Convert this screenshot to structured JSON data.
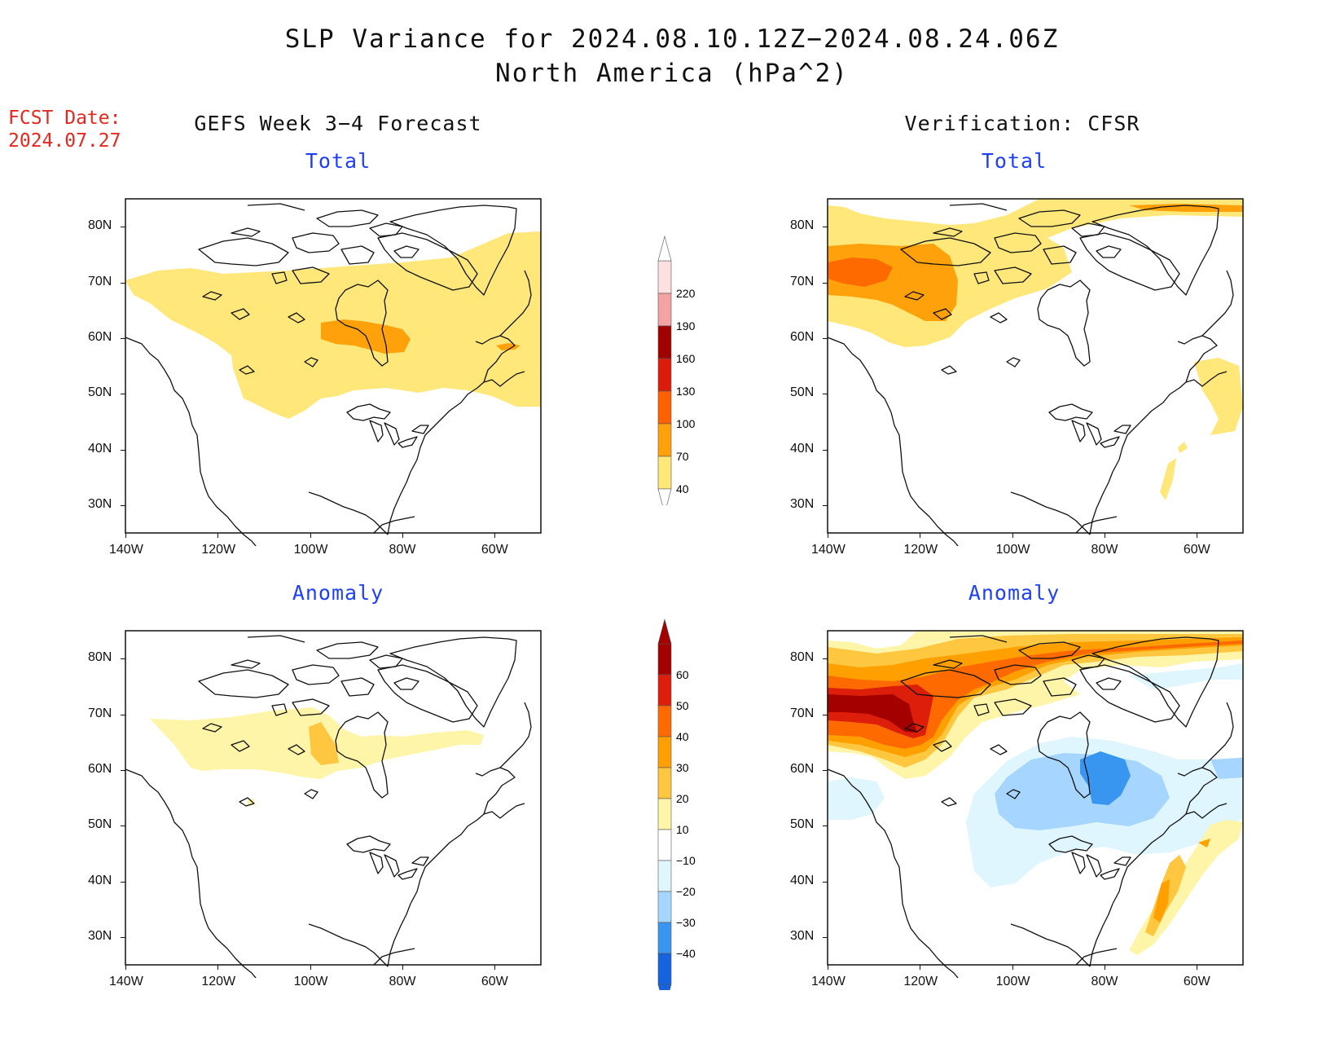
{
  "header": {
    "title": "SLP Variance for 2024.08.10.12Z−2024.08.24.06Z",
    "subtitle": "North America (hPa^2)",
    "fcst_label": "FCST Date:",
    "fcst_date": "2024.07.27"
  },
  "columns": {
    "left": "GEFS Week 3−4 Forecast",
    "right": "Verification: CFSR"
  },
  "panel_titles": {
    "forecast_total": "Total",
    "verif_total": "Total",
    "forecast_anomaly": "Anomaly",
    "verif_anomaly": "Anomaly"
  },
  "axes": {
    "lat_labels": [
      "80N",
      "70N",
      "60N",
      "50N",
      "40N",
      "30N"
    ],
    "lon_labels": [
      "140W",
      "120W",
      "100W",
      "80W",
      "60W"
    ],
    "lat_range": [
      25,
      85
    ],
    "lon_range": [
      -140,
      -50
    ]
  },
  "colorbars": {
    "total": {
      "labels": [
        "220",
        "190",
        "160",
        "130",
        "100",
        "70",
        "40"
      ],
      "colors": [
        "#fde0e0",
        "#f4a2a4",
        "#a00000",
        "#dc1c0a",
        "#ff6000",
        "#ffa10a",
        "#ffe77a"
      ]
    },
    "anomaly": {
      "labels": [
        "60",
        "50",
        "40",
        "30",
        "20",
        "10",
        "−10",
        "−20",
        "−30",
        "−40"
      ],
      "colors": [
        "#a50000",
        "#dc1e0a",
        "#ff6a00",
        "#ffa000",
        "#ffc640",
        "#fff5a8",
        "#ffffff",
        "#dff6ff",
        "#a6d6ff",
        "#3896f0",
        "#1663e0"
      ]
    }
  }
}
